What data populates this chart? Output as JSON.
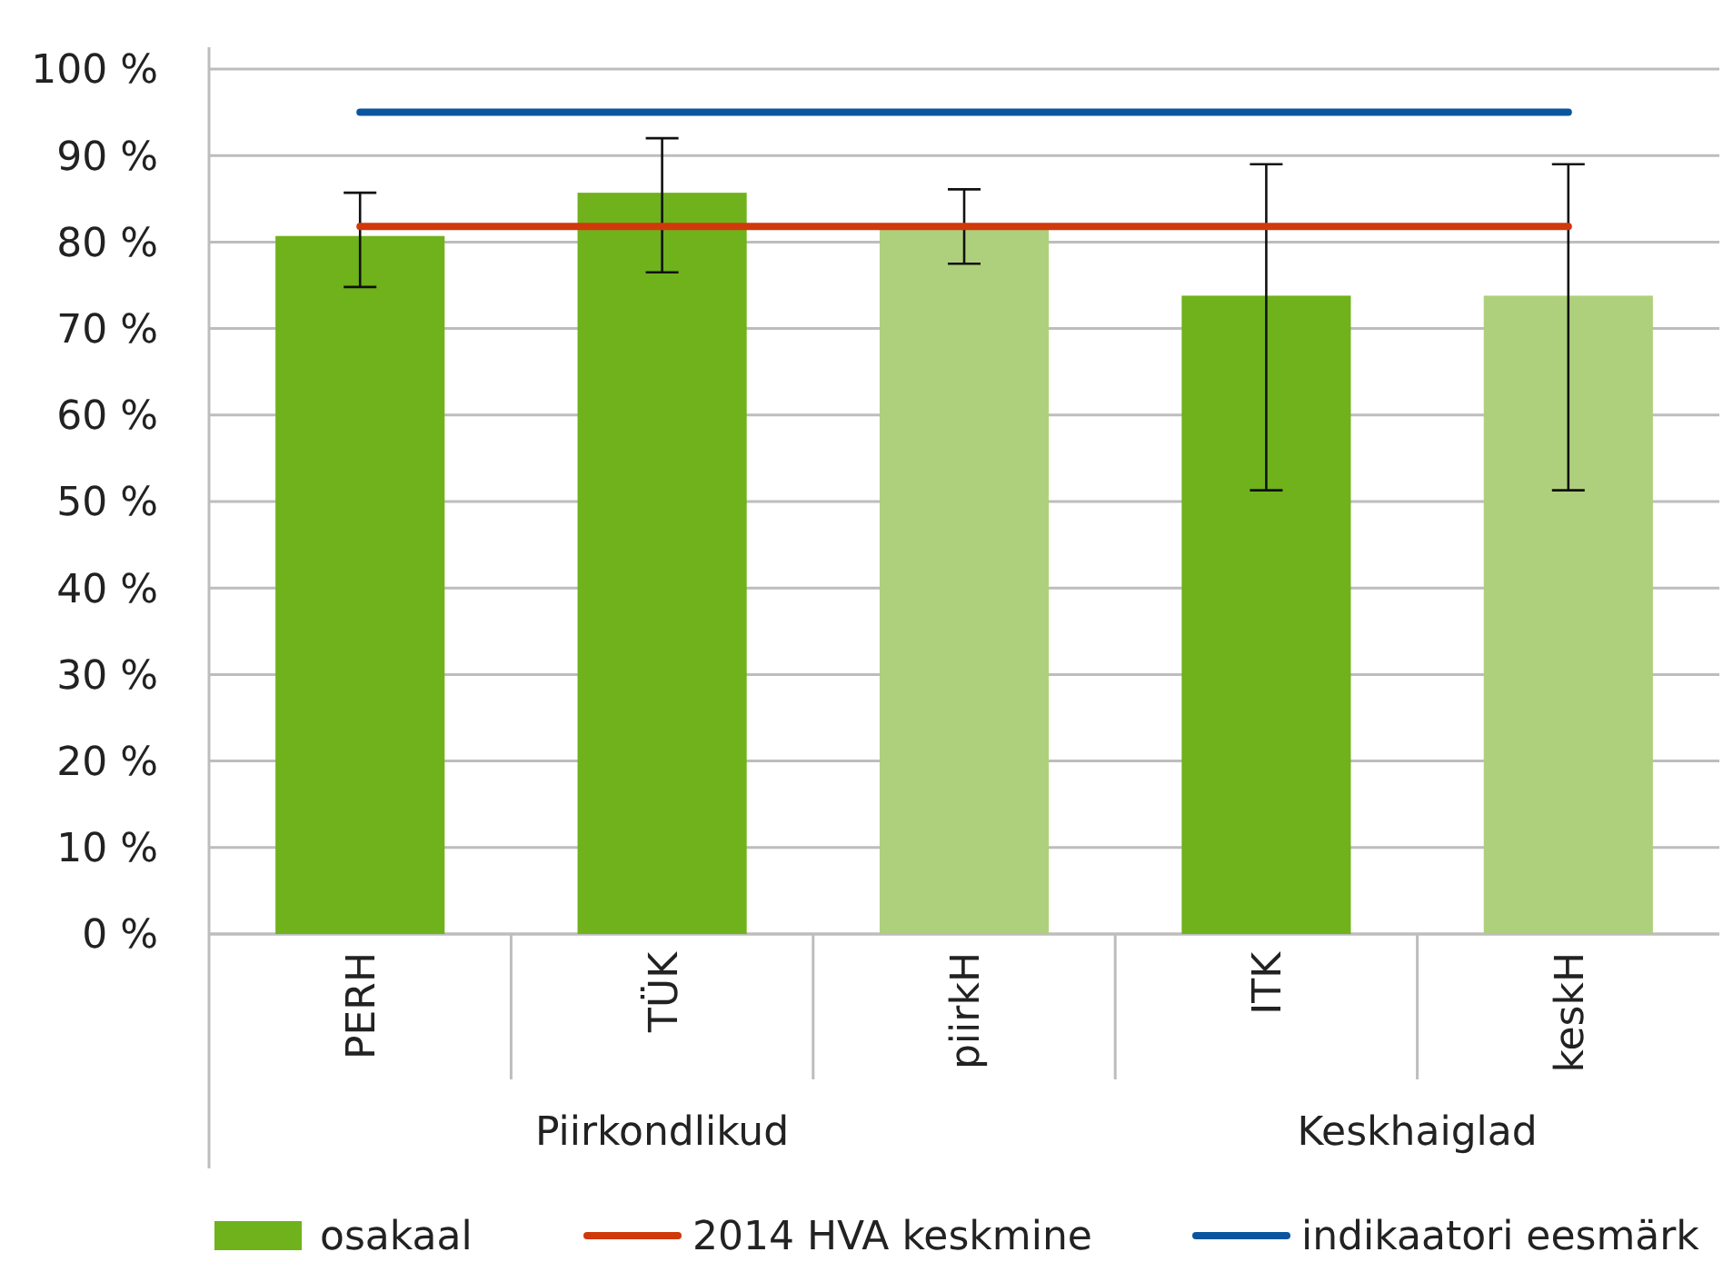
{
  "chart_data": {
    "type": "bar",
    "categories": [
      "PERH",
      "TÜK",
      "piirkH",
      "ITK",
      "keskH"
    ],
    "series": [
      {
        "name": "osakaal",
        "colors": [
          "#6fb21c",
          "#6fb21c",
          "#aed07c",
          "#6fb21c",
          "#aed07c"
        ],
        "color": "#6fb21c",
        "values": [
          80.7,
          85.7,
          82.1,
          73.8,
          73.8
        ],
        "errors": [
          [
            74.8,
            85.7
          ],
          [
            76.5,
            92
          ],
          [
            77.5,
            86.1
          ],
          [
            51.3,
            89
          ],
          [
            51.3,
            89
          ]
        ]
      },
      {
        "name": "2014 HVA keskmine",
        "type": "line",
        "color": "#d0390a",
        "values": [
          81.8,
          81.8,
          81.8,
          81.8,
          81.8
        ]
      },
      {
        "name": "indikaatori eesmärk",
        "type": "line",
        "color": "#0b559f",
        "values": [
          95,
          95,
          95,
          95,
          95
        ]
      }
    ],
    "annotations": [
      "Piirkondlikud",
      "Keskhaiglad"
    ],
    "ylim": [
      0,
      100
    ],
    "yticks": [
      {
        "value": 0,
        "label": "0 %"
      },
      {
        "value": 10,
        "label": "10 %"
      },
      {
        "value": 20,
        "label": "20 %"
      },
      {
        "value": 30,
        "label": "30 %"
      },
      {
        "value": 40,
        "label": "40 %"
      },
      {
        "value": 50,
        "label": "50 %"
      },
      {
        "value": 60,
        "label": "60 %"
      },
      {
        "value": 70,
        "label": "70 %"
      },
      {
        "value": 80,
        "label": "80 %"
      },
      {
        "value": 90,
        "label": "90 %"
      },
      {
        "value": 100,
        "label": "100 %"
      }
    ],
    "grid": "y",
    "legend": "bottom",
    "marker": "none",
    "line_style": "solid"
  }
}
